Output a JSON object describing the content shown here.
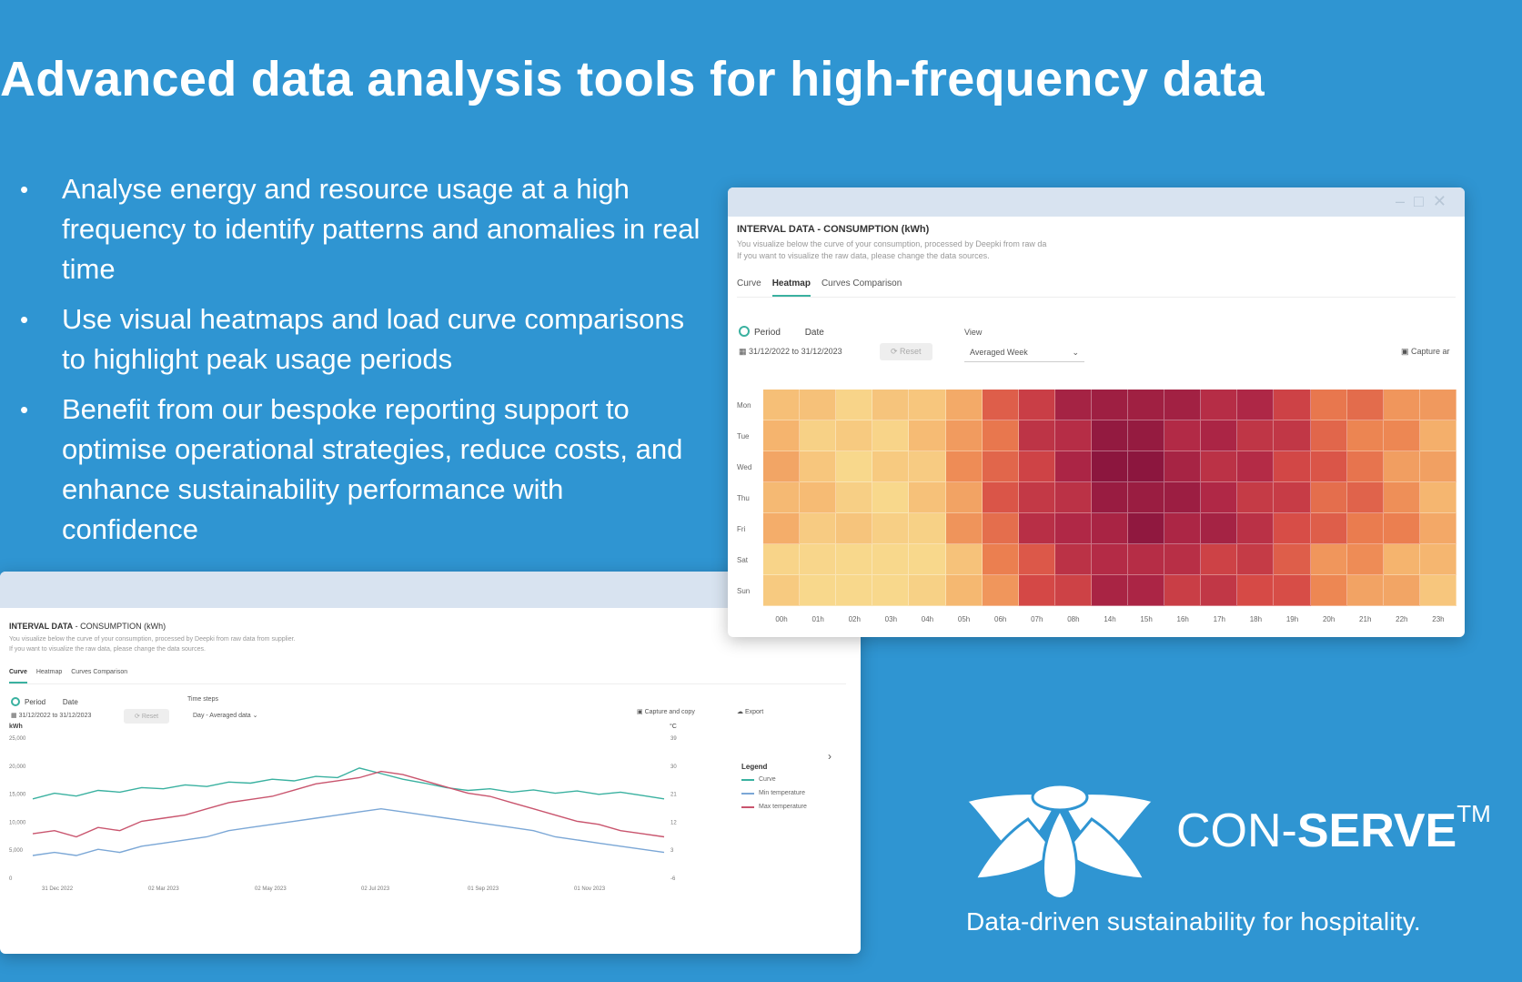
{
  "slide": {
    "title": "Advanced data analysis tools for high-frequency data",
    "bullets": [
      "Analyse energy and resource usage at a high frequency to identify patterns and anomalies in real time",
      "Use visual heatmaps and load curve comparisons to highlight peak usage periods",
      "Benefit from our bespoke reporting support to optimise operational strategies, reduce costs, and enhance sustainability performance with confidence"
    ]
  },
  "heatmap_window": {
    "title": "INTERVAL DATA - CONSUMPTION (kWh)",
    "desc1": "You visualize below the curve of your consumption, processed by Deepki from raw da",
    "desc2": "If you want to visualize the raw data, please change the data sources.",
    "tabs": [
      "Curve",
      "Heatmap",
      "Curves Comparison"
    ],
    "active_tab": "Heatmap",
    "period_label": "Period",
    "date_label": "Date",
    "date_range": "31/12/2022 to 31/12/2023",
    "reset_label": "Reset",
    "view_label": "View",
    "view_value": "Averaged Week",
    "capture_label": "Capture ar",
    "rows": [
      "Mon",
      "Tue",
      "Wed",
      "Thu",
      "Fri",
      "Sat",
      "Sun"
    ],
    "cols": [
      "00h",
      "01h",
      "02h",
      "03h",
      "04h",
      "05h",
      "06h",
      "07h",
      "08h",
      "14h",
      "15h",
      "16h",
      "17h",
      "18h",
      "19h",
      "20h",
      "21h",
      "22h",
      "23h"
    ]
  },
  "curve_window": {
    "title": "INTERVAL DATA",
    "title_sub": " - CONSUMPTION (kWh)",
    "desc1": "You visualize below the curve of your consumption, processed by Deepki from raw data from supplier.",
    "desc2": "If you want to visualize the raw data, please change the data sources.",
    "tabs": [
      "Curve",
      "Heatmap",
      "Curves Comparison"
    ],
    "active_tab": "Curve",
    "period_label": "Period",
    "date_label": "Date",
    "date_range": "31/12/2022 to 31/12/2023",
    "reset_label": "Reset",
    "timesteps_label": "Time steps",
    "timesteps_value": "Day - Averaged data",
    "capture_label": "Capture and copy",
    "export_label": "Export",
    "legend_title": "Legend",
    "legend": [
      {
        "name": "Curve",
        "color": "#3ab1a0"
      },
      {
        "name": "Min temperature",
        "color": "#7ba7d6"
      },
      {
        "name": "Max temperature",
        "color": "#c9556e"
      }
    ]
  },
  "chart_data": {
    "type": "line",
    "ylabel": "kWh",
    "y2label": "°C",
    "yticks": [
      "25,000",
      "20,000",
      "15,000",
      "10,000",
      "5,000",
      "0"
    ],
    "y2ticks": [
      "39",
      "30",
      "21",
      "12",
      "3",
      "-6"
    ],
    "xticks": [
      "31 Dec 2022",
      "02 Mar 2023",
      "02 May 2023",
      "02 Jul 2023",
      "01 Sep 2023",
      "01 Nov 2023"
    ],
    "ylim": [
      0,
      25000
    ],
    "y2lim": [
      -6,
      39
    ],
    "series": [
      {
        "name": "Curve",
        "color": "#3ab1a0",
        "values": [
          14000,
          15000,
          14500,
          15500,
          15200,
          16000,
          15800,
          16500,
          16200,
          17000,
          16800,
          17500,
          17200,
          18000,
          17800,
          19500,
          18500,
          17500,
          16800,
          16000,
          15500,
          15800,
          15200,
          15600,
          15000,
          15400,
          14800,
          15200,
          14600,
          14000
        ]
      },
      {
        "name": "Min temperature",
        "color": "#7ba7d6",
        "values": [
          1,
          2,
          1,
          3,
          2,
          4,
          5,
          6,
          7,
          9,
          10,
          11,
          12,
          13,
          14,
          15,
          16,
          15,
          14,
          13,
          12,
          11,
          10,
          9,
          7,
          6,
          5,
          4,
          3,
          2
        ]
      },
      {
        "name": "Max temperature",
        "color": "#c9556e",
        "values": [
          8,
          9,
          7,
          10,
          9,
          12,
          13,
          14,
          16,
          18,
          19,
          20,
          22,
          24,
          25,
          26,
          28,
          27,
          25,
          23,
          21,
          20,
          18,
          16,
          14,
          12,
          11,
          9,
          8,
          7
        ]
      }
    ]
  },
  "brand": {
    "name_light": "CON-",
    "name_bold": "SERVE",
    "tm": "TM",
    "tagline": "Data-driven sustainability for hospitality."
  },
  "colors": {
    "background": "#2f95d2",
    "accent": "#3ab1a0"
  }
}
